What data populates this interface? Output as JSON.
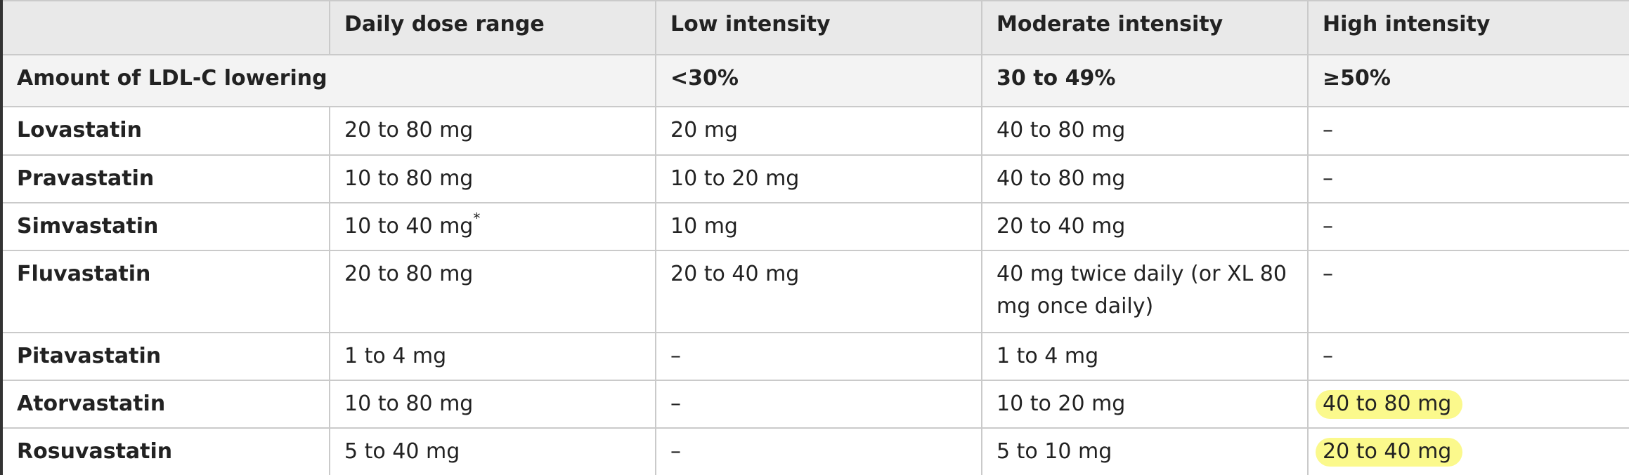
{
  "header": {
    "columns": [
      "Daily dose range",
      "Low intensity",
      "Moderate intensity",
      "High intensity"
    ]
  },
  "ldl_row": {
    "label": "Amount of LDL-C lowering",
    "low": "<30%",
    "moderate": "30 to 49%",
    "high": "≥50%"
  },
  "rows": [
    {
      "drug": "Lovastatin",
      "daily_dose": "20 to 80 mg",
      "low": "20 mg",
      "moderate": "40 to 80 mg",
      "high": "–"
    },
    {
      "drug": "Pravastatin",
      "daily_dose": "10 to 80 mg",
      "low": "10 to 20 mg",
      "moderate": "40 to 80 mg",
      "high": "–"
    },
    {
      "drug": "Simvastatin",
      "daily_dose": "10 to 40 mg",
      "daily_dose_note": "*",
      "low": "10 mg",
      "moderate": "20 to 40 mg",
      "high": "–"
    },
    {
      "drug": "Fluvastatin",
      "daily_dose": "20 to 80 mg",
      "low": "20 to 40 mg",
      "moderate": "40 mg twice daily (or XL 80 mg once daily)",
      "high": "–"
    },
    {
      "drug": "Pitavastatin",
      "daily_dose": "1 to 4 mg",
      "low": "–",
      "moderate": "1 to 4 mg",
      "high": "–"
    },
    {
      "drug": "Atorvastatin",
      "daily_dose": "10 to 80 mg",
      "low": "–",
      "moderate": "10 to 20 mg",
      "high": "40 to 80 mg"
    },
    {
      "drug": "Rosuvastatin",
      "daily_dose": "5 to 40 mg",
      "low": "–",
      "moderate": "5 to 10 mg",
      "high": "20 to 40 mg"
    }
  ]
}
